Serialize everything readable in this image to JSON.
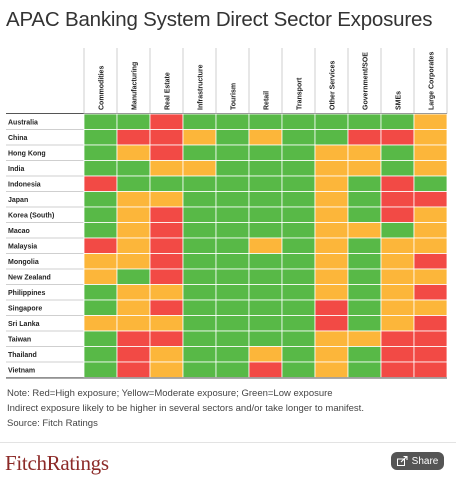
{
  "page": {
    "notes": [
      "Note: Red=High exposure; Yellow=Moderate exposure; Green=Low exposure",
      "Indirect exposure likely to be higher in several sectors and/or take longer to manifest.",
      "Source: Fitch Ratings"
    ],
    "brand": "FitchRatings",
    "share_label": "Share",
    "share_icon": "share-icon"
  },
  "chart_data": {
    "type": "heatmap",
    "title": "APAC Banking System Direct Sector Exposures",
    "x_labels": [
      "Commodities",
      "Manufacturing",
      "Real Estate",
      "Infrastructure",
      "Tourism",
      "Retail",
      "Transport",
      "Other Services",
      "Government/SOE",
      "SMEs",
      "Large Corporates"
    ],
    "y_labels": [
      "Australia",
      "China",
      "Hong Kong",
      "India",
      "Indonesia",
      "Japan",
      "Korea (South)",
      "Macao",
      "Malaysia",
      "Mongolia",
      "New Zealand",
      "Philippines",
      "Singapore",
      "Sri Lanka",
      "Taiwan",
      "Thailand",
      "Vietnam"
    ],
    "legend": {
      "H": "High exposure",
      "M": "Moderate exposure",
      "L": "Low exposure"
    },
    "colors": {
      "H": "#f24a45",
      "M": "#fcb63a",
      "L": "#58b947"
    },
    "values": [
      [
        "L",
        "L",
        "H",
        "L",
        "L",
        "L",
        "L",
        "L",
        "L",
        "L",
        "M"
      ],
      [
        "L",
        "H",
        "H",
        "M",
        "L",
        "M",
        "L",
        "L",
        "H",
        "H",
        "M"
      ],
      [
        "L",
        "M",
        "H",
        "L",
        "L",
        "L",
        "L",
        "M",
        "M",
        "L",
        "M"
      ],
      [
        "L",
        "L",
        "M",
        "M",
        "L",
        "L",
        "L",
        "M",
        "M",
        "L",
        "M"
      ],
      [
        "H",
        "L",
        "L",
        "L",
        "L",
        "L",
        "L",
        "M",
        "L",
        "H",
        "L"
      ],
      [
        "L",
        "M",
        "M",
        "L",
        "L",
        "L",
        "L",
        "M",
        "L",
        "H",
        "H"
      ],
      [
        "L",
        "M",
        "H",
        "L",
        "L",
        "L",
        "L",
        "M",
        "L",
        "H",
        "M"
      ],
      [
        "L",
        "M",
        "H",
        "L",
        "L",
        "L",
        "L",
        "M",
        "M",
        "L",
        "M"
      ],
      [
        "H",
        "M",
        "H",
        "L",
        "L",
        "M",
        "L",
        "M",
        "L",
        "M",
        "M"
      ],
      [
        "M",
        "M",
        "H",
        "L",
        "L",
        "L",
        "L",
        "M",
        "L",
        "M",
        "H"
      ],
      [
        "M",
        "L",
        "H",
        "L",
        "L",
        "L",
        "L",
        "M",
        "L",
        "M",
        "M"
      ],
      [
        "L",
        "M",
        "M",
        "L",
        "L",
        "L",
        "L",
        "M",
        "L",
        "M",
        "H"
      ],
      [
        "L",
        "M",
        "H",
        "L",
        "L",
        "L",
        "L",
        "H",
        "L",
        "M",
        "M"
      ],
      [
        "M",
        "M",
        "M",
        "L",
        "L",
        "L",
        "L",
        "H",
        "L",
        "M",
        "H"
      ],
      [
        "L",
        "H",
        "H",
        "L",
        "L",
        "L",
        "L",
        "M",
        "M",
        "H",
        "H"
      ],
      [
        "L",
        "H",
        "M",
        "L",
        "L",
        "M",
        "L",
        "M",
        "L",
        "H",
        "H"
      ],
      [
        "L",
        "H",
        "M",
        "L",
        "L",
        "H",
        "L",
        "M",
        "L",
        "H",
        "H"
      ]
    ]
  }
}
